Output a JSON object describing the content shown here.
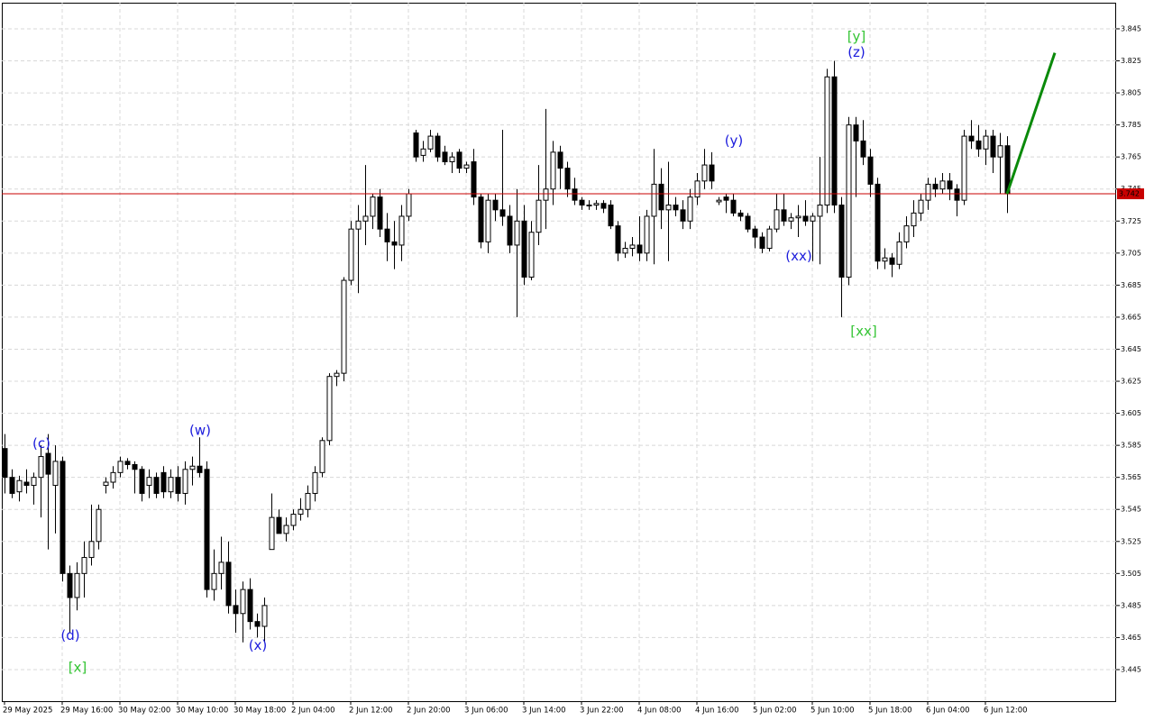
{
  "chart_data": {
    "type": "candlestick",
    "categories": [
      "29 May 2025",
      null,
      null,
      null,
      null,
      null,
      null,
      null,
      "29 May 16:00",
      null,
      null,
      null,
      null,
      null,
      null,
      null,
      "30 May 02:00",
      null,
      null,
      null,
      null,
      null,
      null,
      null,
      "30 May 10:00",
      null,
      null,
      null,
      null,
      null,
      null,
      null,
      "30 May 18:00",
      null,
      null,
      null,
      null,
      null,
      null,
      null,
      "2 Jun 04:00",
      null,
      null,
      null,
      null,
      null,
      null,
      null,
      "2 Jun 12:00",
      null,
      null,
      null,
      null,
      null,
      null,
      null,
      "2 Jun 20:00",
      null,
      null,
      null,
      null,
      null,
      null,
      null,
      "3 Jun 06:00",
      null,
      null,
      null,
      null,
      null,
      null,
      null,
      "3 Jun 14:00",
      null,
      null,
      null,
      null,
      null,
      null,
      null,
      "3 Jun 22:00",
      null,
      null,
      null,
      null,
      null,
      null,
      null,
      "4 Jun 08:00",
      null,
      null,
      null,
      null,
      null,
      null,
      null,
      "4 Jun 16:00",
      null,
      null,
      null,
      null,
      null,
      null,
      null,
      "5 Jun 02:00",
      null,
      null,
      null,
      null,
      null,
      null,
      null,
      "5 Jun 10:00",
      null,
      null,
      null,
      null,
      null,
      null,
      null,
      "5 Jun 18:00",
      null,
      null,
      null,
      null,
      null,
      null,
      null,
      "6 Jun 04:00",
      null,
      null,
      null,
      null,
      null,
      null,
      null,
      "6 Jun 12:00",
      null,
      null,
      null
    ],
    "open": [
      3.583,
      3.565,
      3.556,
      3.562,
      3.56,
      3.565,
      3.58,
      3.56,
      3.575,
      3.505,
      3.49,
      3.505,
      3.515,
      3.525,
      3.56,
      3.562,
      3.568,
      3.575,
      3.573,
      3.57,
      3.56,
      3.565,
      3.568,
      3.556,
      3.565,
      3.555,
      3.57,
      3.572,
      3.57,
      3.495,
      3.505,
      3.512,
      3.485,
      3.48,
      3.495,
      3.475,
      3.472,
      3.52,
      3.54,
      3.53,
      3.535,
      3.542,
      3.545,
      3.555,
      3.568,
      3.588,
      3.628,
      3.63,
      3.688,
      3.72,
      3.725,
      3.728,
      3.74,
      3.72,
      3.712,
      3.71,
      3.728,
      3.78,
      3.766,
      3.77,
      3.778,
      3.768,
      3.762,
      3.768,
      3.758,
      3.762,
      3.74,
      3.712,
      3.738,
      3.732,
      3.728,
      3.71,
      3.725,
      3.69,
      3.718,
      3.738,
      3.745,
      3.768,
      3.758,
      3.745,
      3.738,
      3.735,
      3.735,
      3.736,
      3.735,
      3.722,
      3.705,
      3.708,
      3.71,
      3.705,
      3.728,
      3.748,
      3.732,
      3.735,
      3.732,
      3.725,
      3.74,
      3.75,
      3.76,
      3.737,
      3.74,
      3.738,
      3.73,
      3.728,
      3.72,
      3.715,
      3.708,
      3.72,
      3.732,
      3.725,
      3.727,
      3.728,
      3.725,
      3.728,
      3.735,
      3.815,
      3.735,
      3.69,
      3.785,
      3.775,
      3.765,
      3.748,
      3.7,
      3.702,
      3.698,
      3.712,
      3.722,
      3.73,
      3.738,
      3.748,
      3.745,
      3.75,
      3.745,
      3.738,
      3.778,
      3.775,
      3.77,
      3.778,
      3.765,
      3.772
    ],
    "high": [
      3.592,
      3.57,
      3.566,
      3.57,
      3.568,
      3.585,
      3.592,
      3.585,
      3.578,
      3.51,
      3.512,
      3.525,
      3.548,
      3.548,
      3.565,
      3.572,
      3.578,
      3.577,
      3.575,
      3.572,
      3.57,
      3.568,
      3.572,
      3.57,
      3.572,
      3.575,
      3.578,
      3.59,
      3.575,
      3.52,
      3.528,
      3.525,
      3.495,
      3.5,
      3.502,
      3.48,
      3.49,
      3.555,
      3.545,
      3.54,
      3.545,
      3.552,
      3.56,
      3.572,
      3.59,
      3.63,
      3.632,
      3.69,
      3.725,
      3.735,
      3.76,
      3.742,
      3.745,
      3.73,
      3.725,
      3.735,
      3.745,
      3.782,
      3.775,
      3.782,
      3.78,
      3.772,
      3.768,
      3.77,
      3.762,
      3.77,
      3.742,
      3.742,
      3.742,
      3.782,
      3.735,
      3.745,
      3.735,
      3.725,
      3.76,
      3.795,
      3.775,
      3.772,
      3.762,
      3.752,
      3.74,
      3.738,
      3.738,
      3.738,
      3.738,
      3.725,
      3.712,
      3.715,
      3.728,
      3.732,
      3.77,
      3.758,
      3.762,
      3.74,
      3.738,
      3.745,
      3.755,
      3.77,
      3.768,
      3.74,
      3.742,
      3.742,
      3.732,
      3.73,
      3.722,
      3.718,
      3.722,
      3.742,
      3.742,
      3.73,
      3.735,
      3.738,
      3.73,
      3.765,
      3.82,
      3.825,
      3.74,
      3.79,
      3.79,
      3.788,
      3.77,
      3.752,
      3.708,
      3.705,
      3.718,
      3.728,
      3.738,
      3.742,
      3.752,
      3.752,
      3.755,
      3.755,
      3.748,
      3.782,
      3.788,
      3.785,
      3.782,
      3.782,
      3.78,
      3.778
    ],
    "low": [
      3.555,
      3.552,
      3.55,
      3.555,
      3.548,
      3.54,
      3.52,
      3.53,
      3.5,
      3.468,
      3.482,
      3.49,
      3.51,
      3.52,
      3.555,
      3.558,
      3.565,
      3.57,
      3.555,
      3.55,
      3.552,
      3.552,
      3.552,
      3.552,
      3.55,
      3.548,
      3.56,
      3.565,
      3.49,
      3.488,
      3.495,
      3.48,
      3.468,
      3.462,
      3.47,
      3.465,
      3.462,
      3.52,
      3.53,
      3.525,
      3.532,
      3.538,
      3.54,
      3.55,
      3.565,
      3.585,
      3.622,
      3.625,
      3.685,
      3.68,
      3.71,
      3.72,
      3.715,
      3.7,
      3.695,
      3.7,
      3.725,
      3.762,
      3.762,
      3.768,
      3.762,
      3.76,
      3.755,
      3.755,
      3.755,
      3.735,
      3.708,
      3.705,
      3.725,
      3.722,
      3.705,
      3.665,
      3.685,
      3.688,
      3.71,
      3.72,
      3.735,
      3.745,
      3.74,
      3.735,
      3.732,
      3.732,
      3.732,
      3.73,
      3.72,
      3.7,
      3.702,
      3.703,
      3.7,
      3.7,
      3.698,
      3.72,
      3.7,
      3.728,
      3.72,
      3.72,
      3.735,
      3.745,
      3.745,
      3.735,
      3.73,
      3.728,
      3.725,
      3.718,
      3.708,
      3.705,
      3.706,
      3.718,
      3.722,
      3.72,
      3.715,
      3.722,
      3.7,
      3.698,
      3.73,
      3.73,
      3.665,
      3.685,
      3.74,
      3.76,
      3.74,
      3.695,
      3.695,
      3.69,
      3.695,
      3.708,
      3.715,
      3.725,
      3.732,
      3.74,
      3.742,
      3.738,
      3.728,
      3.735,
      3.77,
      3.765,
      3.76,
      3.755,
      3.742,
      3.73
    ],
    "close": [
      3.565,
      3.555,
      3.563,
      3.56,
      3.565,
      3.578,
      3.567,
      3.575,
      3.505,
      3.49,
      3.505,
      3.515,
      3.525,
      3.545,
      3.562,
      3.568,
      3.575,
      3.573,
      3.57,
      3.555,
      3.565,
      3.555,
      3.556,
      3.565,
      3.555,
      3.57,
      3.572,
      3.568,
      3.495,
      3.505,
      3.512,
      3.485,
      3.48,
      3.495,
      3.475,
      3.472,
      3.485,
      3.54,
      3.53,
      3.535,
      3.542,
      3.545,
      3.555,
      3.568,
      3.588,
      3.628,
      3.63,
      3.688,
      3.72,
      3.725,
      3.728,
      3.74,
      3.72,
      3.712,
      3.71,
      3.728,
      3.742,
      3.765,
      3.77,
      3.778,
      3.765,
      3.762,
      3.765,
      3.758,
      3.76,
      3.74,
      3.712,
      3.738,
      3.732,
      3.728,
      3.71,
      3.725,
      3.69,
      3.718,
      3.738,
      3.745,
      3.768,
      3.758,
      3.745,
      3.738,
      3.735,
      3.735,
      3.736,
      3.733,
      3.722,
      3.705,
      3.708,
      3.71,
      3.705,
      3.728,
      3.748,
      3.732,
      3.735,
      3.732,
      3.725,
      3.74,
      3.75,
      3.76,
      3.75,
      3.738,
      3.738,
      3.73,
      3.728,
      3.72,
      3.715,
      3.708,
      3.72,
      3.732,
      3.725,
      3.727,
      3.728,
      3.725,
      3.728,
      3.735,
      3.815,
      3.735,
      3.69,
      3.785,
      3.775,
      3.765,
      3.748,
      3.7,
      3.702,
      3.698,
      3.712,
      3.722,
      3.73,
      3.738,
      3.748,
      3.745,
      3.75,
      3.745,
      3.738,
      3.778,
      3.775,
      3.77,
      3.778,
      3.765,
      3.772,
      3.742
    ],
    "up_color": "#ffffff",
    "down_color": "#000000",
    "ylim": [
      3.4253,
      3.8613
    ],
    "yticks": [
      3.445,
      3.465,
      3.485,
      3.505,
      3.525,
      3.545,
      3.565,
      3.585,
      3.605,
      3.625,
      3.645,
      3.665,
      3.685,
      3.705,
      3.725,
      3.745,
      3.765,
      3.785,
      3.805,
      3.825,
      3.845
    ],
    "grid": true,
    "current_price": {
      "value": 3.742,
      "color": "#c80000"
    },
    "forecast": {
      "from": 3.742,
      "to": 3.83,
      "color": "#0a8a0a"
    },
    "annotations": [
      {
        "text": "(c)",
        "candle": 5,
        "price": 3.586,
        "color": "#1c1cdc"
      },
      {
        "text": "(d)",
        "candle": 9,
        "price": 3.466,
        "color": "#1c1cdc"
      },
      {
        "text": "[x]",
        "candle": 10,
        "price": 3.446,
        "color": "#33c433"
      },
      {
        "text": "(w)",
        "candle": 27,
        "price": 3.594,
        "color": "#1c1cdc"
      },
      {
        "text": "(x)",
        "candle": 35,
        "price": 3.46,
        "color": "#1c1cdc"
      },
      {
        "text": "(y)",
        "candle": 101,
        "price": 3.775,
        "color": "#1c1cdc"
      },
      {
        "text": "(xx)",
        "candle": 110,
        "price": 3.703,
        "color": "#1c1cdc"
      },
      {
        "text": "[y]",
        "candle": 118,
        "price": 3.84,
        "color": "#33c433"
      },
      {
        "text": "(z)",
        "candle": 118,
        "price": 3.83,
        "color": "#1c1cdc"
      },
      {
        "text": "[xx]",
        "candle": 119,
        "price": 3.656,
        "color": "#33c433"
      }
    ]
  }
}
